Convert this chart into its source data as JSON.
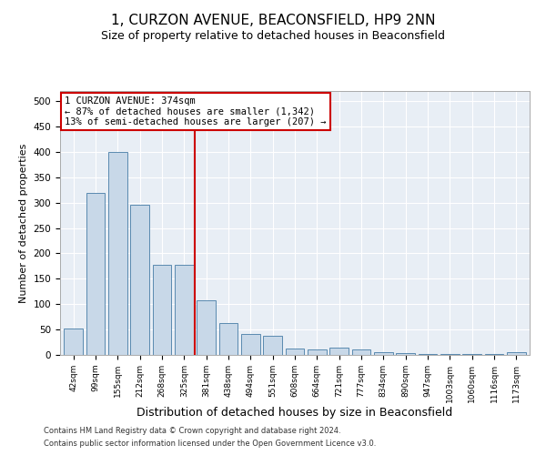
{
  "title": "1, CURZON AVENUE, BEACONSFIELD, HP9 2NN",
  "subtitle": "Size of property relative to detached houses in Beaconsfield",
  "xlabel": "Distribution of detached houses by size in Beaconsfield",
  "ylabel": "Number of detached properties",
  "categories": [
    "42sqm",
    "99sqm",
    "155sqm",
    "212sqm",
    "268sqm",
    "325sqm",
    "381sqm",
    "438sqm",
    "494sqm",
    "551sqm",
    "608sqm",
    "664sqm",
    "721sqm",
    "777sqm",
    "834sqm",
    "890sqm",
    "947sqm",
    "1003sqm",
    "1060sqm",
    "1116sqm",
    "1173sqm"
  ],
  "values": [
    52,
    320,
    400,
    295,
    178,
    178,
    108,
    63,
    42,
    38,
    12,
    10,
    15,
    10,
    6,
    4,
    2,
    1,
    1,
    1,
    5
  ],
  "bar_color": "#c8d8e8",
  "bar_edge_color": "#5a8ab0",
  "vline_x": 5.5,
  "vline_color": "#cc0000",
  "annotation_text": "1 CURZON AVENUE: 374sqm\n← 87% of detached houses are smaller (1,342)\n13% of semi-detached houses are larger (207) →",
  "annotation_box_color": "#ffffff",
  "annotation_box_edge": "#cc0000",
  "ylim": [
    0,
    520
  ],
  "yticks": [
    0,
    50,
    100,
    150,
    200,
    250,
    300,
    350,
    400,
    450,
    500
  ],
  "background_color": "#e8eef5",
  "footer_line1": "Contains HM Land Registry data © Crown copyright and database right 2024.",
  "footer_line2": "Contains public sector information licensed under the Open Government Licence v3.0.",
  "title_fontsize": 11,
  "subtitle_fontsize": 9,
  "xlabel_fontsize": 9,
  "ylabel_fontsize": 8
}
